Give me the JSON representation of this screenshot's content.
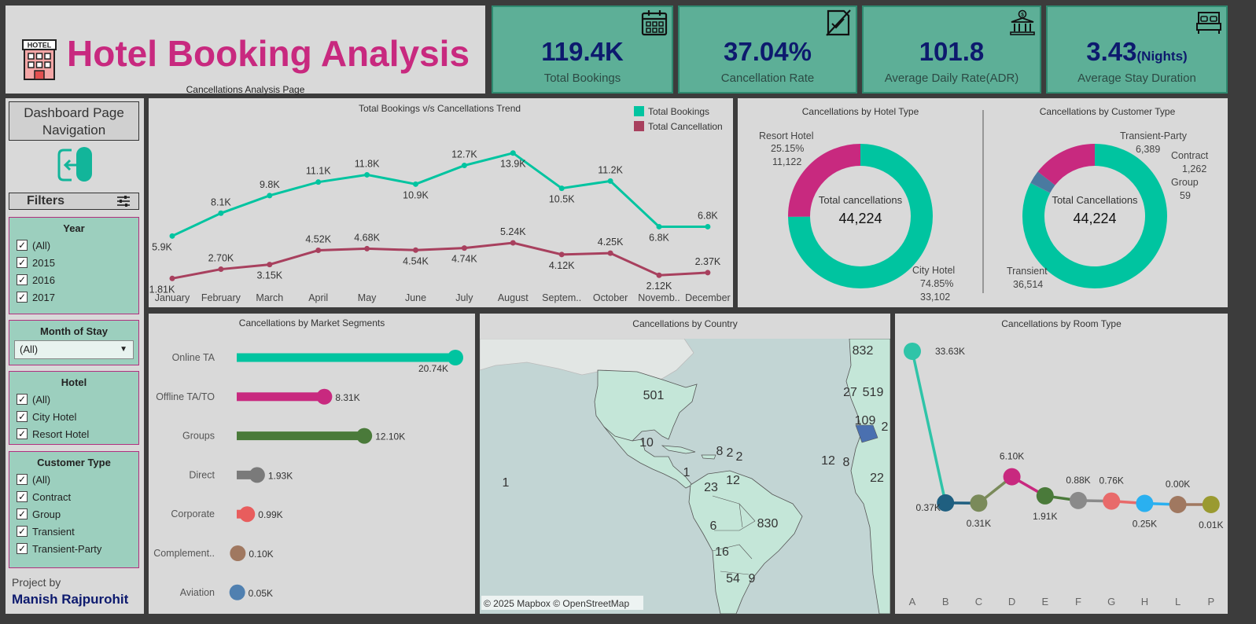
{
  "header": {
    "title": "Hotel Booking Analysis",
    "subtitle": "Cancellations Analysis Page",
    "icon_label": "HOTEL"
  },
  "kpis": [
    {
      "value": "119.4K",
      "unit": "",
      "label": "Total Bookings",
      "icon": "calendar-icon"
    },
    {
      "value": "37.04%",
      "unit": "",
      "label": "Cancellation Rate",
      "icon": "cancelled-document-icon"
    },
    {
      "value": "101.8",
      "unit": "",
      "label": "Average Daily Rate(ADR)",
      "icon": "bank-icon"
    },
    {
      "value": "3.43",
      "unit": "(Nights)",
      "label": "Average Stay Duration",
      "icon": "bed-icon"
    }
  ],
  "sidebar": {
    "nav_title": "Dashboard Page Navigation",
    "filters_title": "Filters",
    "year": {
      "title": "Year",
      "items": [
        "(All)",
        "2015",
        "2016",
        "2017"
      ]
    },
    "month": {
      "title": "Month of Stay",
      "selected": "(All)"
    },
    "hotel": {
      "title": "Hotel",
      "items": [
        "(All)",
        "City Hotel",
        "Resort Hotel"
      ]
    },
    "customer_type": {
      "title": "Customer Type",
      "items": [
        "(All)",
        "Contract",
        "Group",
        "Transient",
        "Transient-Party"
      ]
    },
    "project_by": "Project by",
    "author": "Manish Rajpurohit"
  },
  "colors": {
    "teal": "#00c4a0",
    "maroon": "#a8405e",
    "magenta": "#c8297f",
    "green": "#4a7a3a",
    "gray": "#7a7a7a",
    "coral": "#e85d5d",
    "brown": "#a07860",
    "blue": "#5080b0"
  },
  "chart_data": [
    {
      "type": "line",
      "title": "Total Bookings v/s Cancellations Trend",
      "categories": [
        "January",
        "February",
        "March",
        "April",
        "May",
        "June",
        "July",
        "August",
        "Septem..",
        "October",
        "Novemb..",
        "December"
      ],
      "series": [
        {
          "name": "Total Bookings",
          "values": [
            5.9,
            8.1,
            9.8,
            11.1,
            11.8,
            10.9,
            12.7,
            13.9,
            10.5,
            11.2,
            6.8,
            6.8
          ],
          "labels": [
            "5.9K",
            "8.1K",
            "9.8K",
            "11.1K",
            "11.8K",
            "10.9K",
            "12.7K",
            "13.9K",
            "10.5K",
            "11.2K",
            "6.8K",
            "6.8K"
          ]
        },
        {
          "name": "Total Cancellation",
          "values": [
            1.81,
            2.7,
            3.15,
            4.52,
            4.68,
            4.54,
            4.74,
            5.24,
            4.12,
            4.25,
            2.12,
            2.37
          ],
          "labels": [
            "1.81K",
            "2.70K",
            "3.15K",
            "4.52K",
            "4.68K",
            "4.54K",
            "4.74K",
            "5.24K",
            "4.12K",
            "4.25K",
            "2.12K",
            "2.37K"
          ]
        }
      ],
      "legend": "top-right"
    },
    {
      "type": "pie",
      "title": "Cancellations  by Hotel Type",
      "center_label": "Total cancellations",
      "center_value": "44,224",
      "slices": [
        {
          "name": "City Hotel",
          "value": 33102,
          "percent": "74.85%",
          "value_label": "33,102"
        },
        {
          "name": "Resort Hotel",
          "value": 11122,
          "percent": "25.15%",
          "value_label": "11,122"
        }
      ]
    },
    {
      "type": "pie",
      "title": "Cancellations  by Customer Type",
      "center_label": "Total Cancellations",
      "center_value": "44,224",
      "slices": [
        {
          "name": "Transient",
          "value": 36514,
          "value_label": "36,514"
        },
        {
          "name": "Transient-Party",
          "value": 6389,
          "value_label": "6,389"
        },
        {
          "name": "Contract",
          "value": 1262,
          "value_label": "1,262"
        },
        {
          "name": "Group",
          "value": 59,
          "value_label": "59"
        }
      ]
    },
    {
      "type": "bar",
      "title": "Cancellations by Market Segments",
      "categories": [
        "Online TA",
        "Offline TA/TO",
        "Groups",
        "Direct",
        "Corporate",
        "Complement..",
        "Aviation"
      ],
      "values": [
        20.74,
        8.31,
        12.1,
        1.93,
        0.99,
        0.1,
        0.05
      ],
      "labels": [
        "20.74K",
        "8.31K",
        "12.10K",
        "1.93K",
        "0.99K",
        "0.10K",
        "0.05K"
      ]
    },
    {
      "type": "map",
      "title": "Cancellations by Country",
      "labels": [
        "832",
        "501",
        "27",
        "519",
        "109",
        "2",
        "10",
        "8",
        "2",
        "2",
        "12",
        "8",
        "22",
        "1",
        "1",
        "23",
        "12",
        "6",
        "830",
        "16",
        "54",
        "9"
      ],
      "attribution": "© 2025 Mapbox © OpenStreetMap"
    },
    {
      "type": "line",
      "title": "Cancellations by Room Type",
      "categories": [
        "A",
        "B",
        "C",
        "D",
        "E",
        "F",
        "G",
        "H",
        "L",
        "P"
      ],
      "values": [
        33.63,
        0.37,
        0.31,
        6.1,
        1.91,
        0.88,
        0.76,
        0.25,
        0.0,
        0.01
      ],
      "labels": [
        "33.63K",
        "0.37K",
        "0.31K",
        "6.10K",
        "1.91K",
        "0.88K",
        "0.76K",
        "0.25K",
        "0.00K",
        "0.01K"
      ],
      "colors": [
        "#2fc4a8",
        "#1f5f80",
        "#7a8a5a",
        "#c8297f",
        "#4a7a3a",
        "#8a8a8a",
        "#e86a6a",
        "#2ab0f0",
        "#a07860",
        "#9a9a30"
      ]
    }
  ]
}
